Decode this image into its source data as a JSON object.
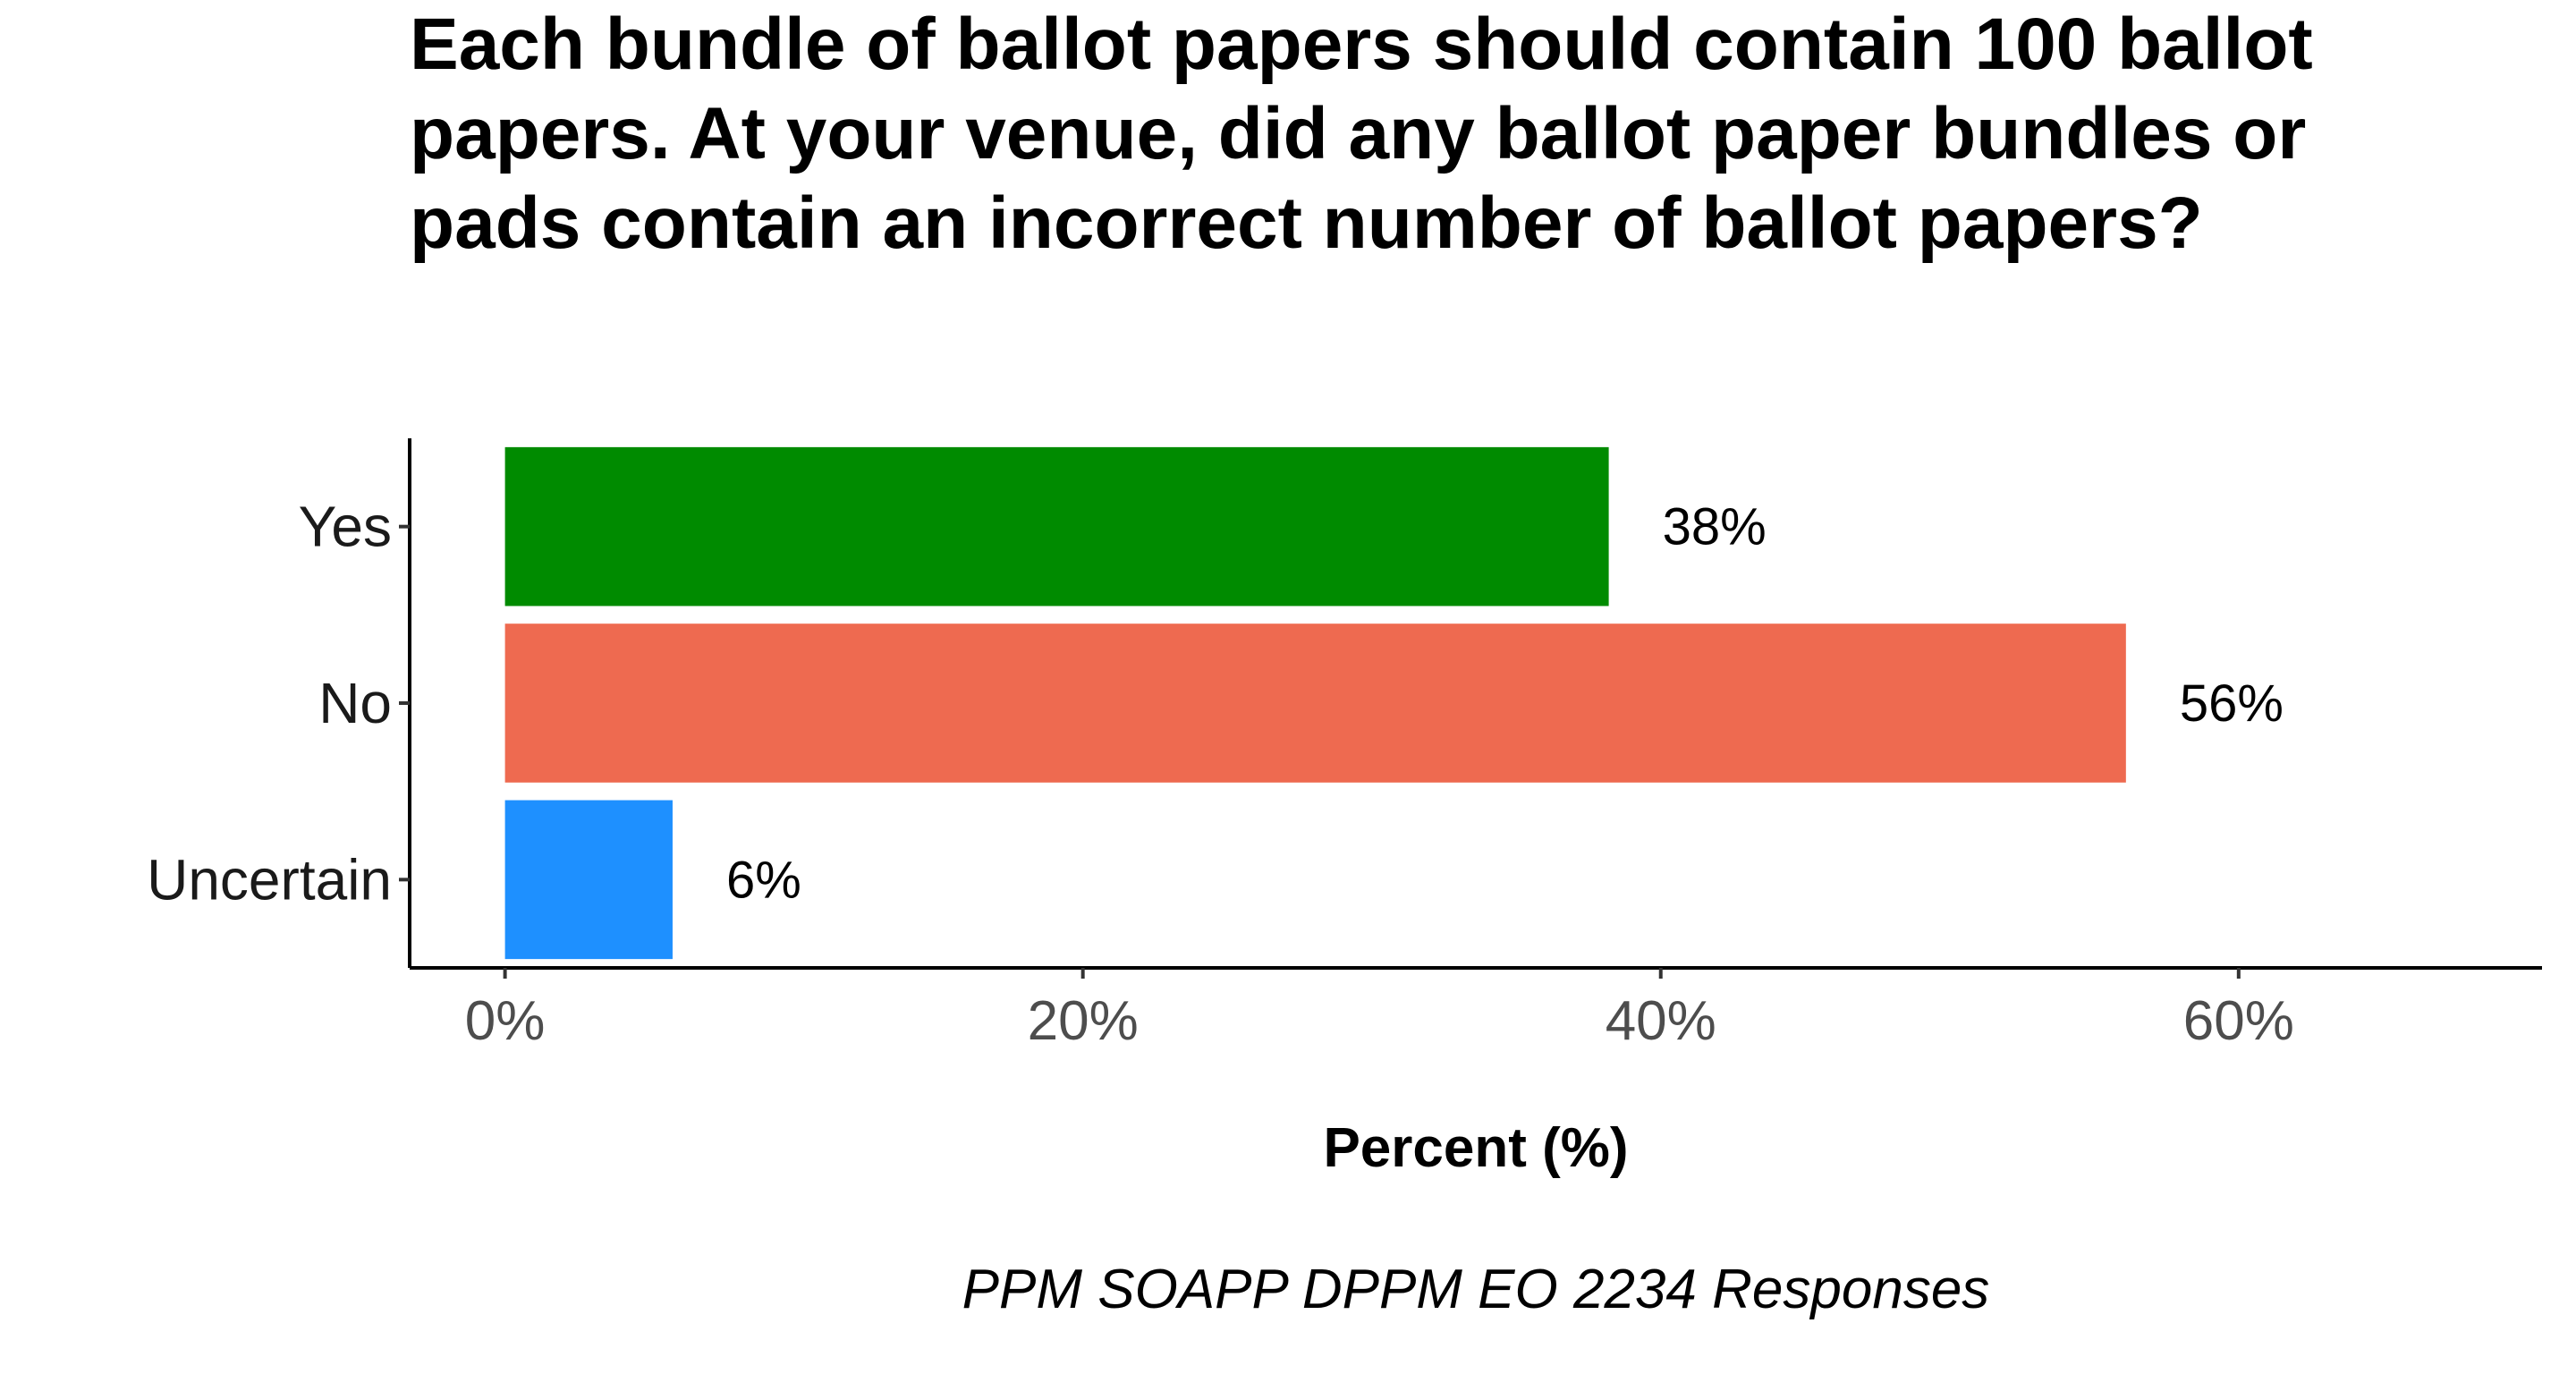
{
  "chart_data": {
    "type": "bar",
    "orientation": "horizontal",
    "title": "Each bundle of ballot papers should contain 100 ballot papers. At your venue, did any ballot paper bundles or pads contain an incorrect number of ballot papers?",
    "categories": [
      "Yes",
      "No",
      "Uncertain"
    ],
    "values": [
      38.2,
      56.1,
      5.8
    ],
    "value_labels": [
      "38%",
      "56%",
      "6%"
    ],
    "colors": [
      "#008B00",
      "#EE6A50",
      "#1E90FF"
    ],
    "xlabel": "Percent (%)",
    "xlim": [
      -3.3,
      70.5
    ],
    "xticks": [
      0,
      20,
      40,
      60
    ],
    "xtick_labels": [
      "0%",
      "20%",
      "40%",
      "60%"
    ],
    "caption": "PPM SOAPP DPPM EO 2234 Responses",
    "grid": false,
    "legend": "none"
  }
}
